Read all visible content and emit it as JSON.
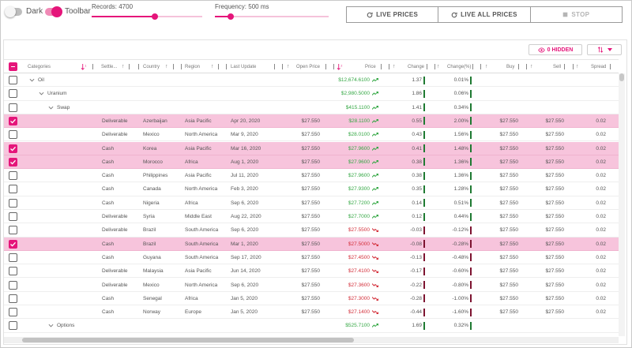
{
  "toolbar": {
    "dark_label": "Dark",
    "toolbar_label": "Toolbar",
    "records_label": "Records: 4700",
    "records_fraction": 0.57,
    "frequency_label": "Frequency: 500 ms",
    "frequency_fraction": 0.14,
    "buttons": {
      "live_prices": "LIVE PRICES",
      "live_all_prices": "LIVE ALL PRICES",
      "stop": "STOP"
    }
  },
  "grid_toolbar": {
    "hidden_label": "0  HIDDEN"
  },
  "columns": {
    "categories": "Categories",
    "settlement": "Settle...",
    "country": "Country",
    "region": "Region",
    "last_update": "Last Update",
    "open_price": "Open Price",
    "price": "Price",
    "change": "Change",
    "change_pct": "Change(%)",
    "buy": "Buy",
    "sell": "Sell",
    "spread": "Spread"
  },
  "groups": [
    {
      "label": "Oil",
      "price": "$12,674.6100",
      "change": "1.37",
      "change_pct": "0.01%"
    },
    {
      "label": "Uranium",
      "price": "$2,980.5000",
      "change": "1.86",
      "change_pct": "0.06%"
    },
    {
      "label": "Swap",
      "price": "$415.1100",
      "change": "1.41",
      "change_pct": "0.34%"
    },
    {
      "label": "Options",
      "price": "$525.7100",
      "change": "1.69",
      "change_pct": "0.32%"
    }
  ],
  "rows": [
    {
      "settlement": "Deliverable",
      "country": "Azerbaijan",
      "region": "Asia Pacific",
      "last_update": "Apr 20, 2020",
      "open_price": "$27.550",
      "price": "$28.1100",
      "change": "0.55",
      "change_pct": "2.00%",
      "buy": "$27.550",
      "sell": "$27.550",
      "spread": "0.02"
    },
    {
      "settlement": "Deliverable",
      "country": "Mexico",
      "region": "North America",
      "last_update": "Mar 9, 2020",
      "open_price": "$27.550",
      "price": "$28.0100",
      "change": "0.43",
      "change_pct": "1.56%",
      "buy": "$27.550",
      "sell": "$27.550",
      "spread": "0.02"
    },
    {
      "settlement": "Cash",
      "country": "Korea",
      "region": "Asia Pacific",
      "last_update": "Mar 16, 2020",
      "open_price": "$27.550",
      "price": "$27.9600",
      "change": "0.41",
      "change_pct": "1.48%",
      "buy": "$27.550",
      "sell": "$27.550",
      "spread": "0.02"
    },
    {
      "settlement": "Cash",
      "country": "Morocco",
      "region": "Africa",
      "last_update": "Aug 1, 2020",
      "open_price": "$27.550",
      "price": "$27.9600",
      "change": "0.38",
      "change_pct": "1.36%",
      "buy": "$27.550",
      "sell": "$27.550",
      "spread": "0.02"
    },
    {
      "settlement": "Cash",
      "country": "Philippines",
      "region": "Asia Pacific",
      "last_update": "Jul 11, 2020",
      "open_price": "$27.550",
      "price": "$27.9600",
      "change": "0.38",
      "change_pct": "1.36%",
      "buy": "$27.550",
      "sell": "$27.550",
      "spread": "0.02"
    },
    {
      "settlement": "Cash",
      "country": "Canada",
      "region": "North America",
      "last_update": "Feb 3, 2020",
      "open_price": "$27.550",
      "price": "$27.9300",
      "change": "0.35",
      "change_pct": "1.28%",
      "buy": "$27.550",
      "sell": "$27.550",
      "spread": "0.02"
    },
    {
      "settlement": "Cash",
      "country": "Nigeria",
      "region": "Africa",
      "last_update": "Sep 6, 2020",
      "open_price": "$27.550",
      "price": "$27.7200",
      "change": "0.14",
      "change_pct": "0.51%",
      "buy": "$27.550",
      "sell": "$27.550",
      "spread": "0.02"
    },
    {
      "settlement": "Deliverable",
      "country": "Syria",
      "region": "Middle East",
      "last_update": "Aug 22, 2020",
      "open_price": "$27.550",
      "price": "$27.7000",
      "change": "0.12",
      "change_pct": "0.44%",
      "buy": "$27.550",
      "sell": "$27.550",
      "spread": "0.02"
    },
    {
      "settlement": "Deliverable",
      "country": "Brazil",
      "region": "South America",
      "last_update": "Sep 6, 2020",
      "open_price": "$27.550",
      "price": "$27.5500",
      "change": "-0.03",
      "change_pct": "-0.12%",
      "buy": "$27.550",
      "sell": "$27.550",
      "spread": "0.02"
    },
    {
      "settlement": "Cash",
      "country": "Brazil",
      "region": "South America",
      "last_update": "Mar 1, 2020",
      "open_price": "$27.550",
      "price": "$27.5000",
      "change": "-0.08",
      "change_pct": "-0.28%",
      "buy": "$27.550",
      "sell": "$27.550",
      "spread": "0.02"
    },
    {
      "settlement": "Cash",
      "country": "Guyana",
      "region": "South America",
      "last_update": "Sep 17, 2020",
      "open_price": "$27.550",
      "price": "$27.4500",
      "change": "-0.13",
      "change_pct": "-0.48%",
      "buy": "$27.550",
      "sell": "$27.550",
      "spread": "0.02"
    },
    {
      "settlement": "Deliverable",
      "country": "Malaysia",
      "region": "Asia Pacific",
      "last_update": "Jun 14, 2020",
      "open_price": "$27.550",
      "price": "$27.4100",
      "change": "-0.17",
      "change_pct": "-0.60%",
      "buy": "$27.550",
      "sell": "$27.550",
      "spread": "0.02"
    },
    {
      "settlement": "Deliverable",
      "country": "Mexico",
      "region": "North America",
      "last_update": "Sep 6, 2020",
      "open_price": "$27.550",
      "price": "$27.3600",
      "change": "-0.22",
      "change_pct": "-0.80%",
      "buy": "$27.550",
      "sell": "$27.550",
      "spread": "0.02"
    },
    {
      "settlement": "Cash",
      "country": "Senegal",
      "region": "Africa",
      "last_update": "Jan 5, 2020",
      "open_price": "$27.550",
      "price": "$27.3000",
      "change": "-0.28",
      "change_pct": "-1.00%",
      "buy": "$27.550",
      "sell": "$27.550",
      "spread": "0.02"
    },
    {
      "settlement": "Cash",
      "country": "Norway",
      "region": "Europe",
      "last_update": "Jan 5, 2020",
      "open_price": "$27.550",
      "price": "$27.1400",
      "change": "-0.44",
      "change_pct": "-1.60%",
      "buy": "$27.550",
      "sell": "$27.550",
      "spread": "0.02"
    }
  ],
  "colors": {
    "accent": "#e5157a",
    "selected_row": "#f7c4dc",
    "positive": "#35a845",
    "negative": "#d32f3a"
  }
}
